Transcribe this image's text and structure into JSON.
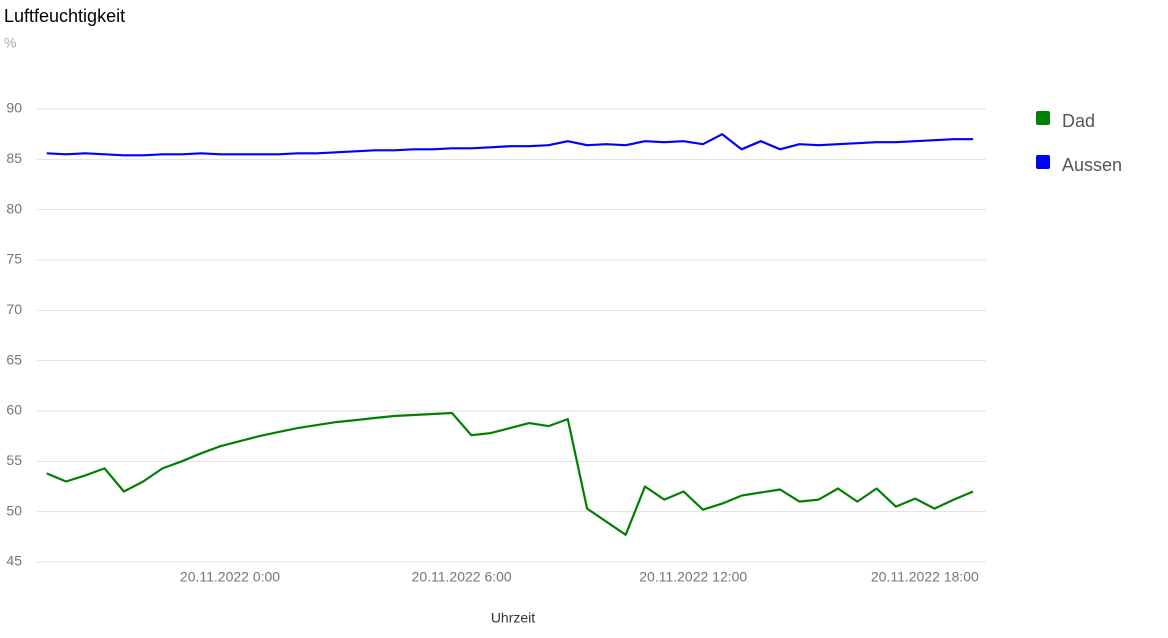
{
  "chart_data": {
    "type": "line",
    "title": "Luftfeuchtigkeit",
    "subtitle": "%",
    "x_label": "Uhrzeit",
    "x": [
      "2022-11-19 19:15",
      "2022-11-19 19:45",
      "2022-11-19 20:15",
      "2022-11-19 20:45",
      "2022-11-19 21:15",
      "2022-11-19 21:45",
      "2022-11-19 22:15",
      "2022-11-19 22:45",
      "2022-11-19 23:15",
      "2022-11-19 23:45",
      "2022-11-20 00:15",
      "2022-11-20 00:45",
      "2022-11-20 01:15",
      "2022-11-20 01:45",
      "2022-11-20 02:15",
      "2022-11-20 02:45",
      "2022-11-20 03:15",
      "2022-11-20 03:45",
      "2022-11-20 04:15",
      "2022-11-20 04:45",
      "2022-11-20 05:15",
      "2022-11-20 05:45",
      "2022-11-20 06:15",
      "2022-11-20 06:45",
      "2022-11-20 07:15",
      "2022-11-20 07:45",
      "2022-11-20 08:15",
      "2022-11-20 08:45",
      "2022-11-20 09:15",
      "2022-11-20 09:45",
      "2022-11-20 10:15",
      "2022-11-20 10:45",
      "2022-11-20 11:15",
      "2022-11-20 11:45",
      "2022-11-20 12:15",
      "2022-11-20 12:45",
      "2022-11-20 13:15",
      "2022-11-20 13:45",
      "2022-11-20 14:15",
      "2022-11-20 14:45",
      "2022-11-20 15:15",
      "2022-11-20 15:45",
      "2022-11-20 16:15",
      "2022-11-20 16:45",
      "2022-11-20 17:15",
      "2022-11-20 17:45",
      "2022-11-20 18:15",
      "2022-11-20 18:45",
      "2022-11-20 19:15"
    ],
    "series": [
      {
        "name": "Dad",
        "color": "#008000",
        "values": [
          53.8,
          53.0,
          53.6,
          54.3,
          52.0,
          53.0,
          54.3,
          55.0,
          55.8,
          56.5,
          57.0,
          57.5,
          57.9,
          58.3,
          58.6,
          58.9,
          59.1,
          59.3,
          59.5,
          59.6,
          59.7,
          59.8,
          57.6,
          57.8,
          58.3,
          58.8,
          58.5,
          59.2,
          50.3,
          49.0,
          47.7,
          52.5,
          51.2,
          52.0,
          50.2,
          50.8,
          51.6,
          51.9,
          52.2,
          51.0,
          51.2,
          52.3,
          51.0,
          52.3,
          50.5,
          51.3,
          50.3,
          51.2,
          52.0
        ]
      },
      {
        "name": "Aussen",
        "color": "#0000ff",
        "values": [
          85.6,
          85.5,
          85.6,
          85.5,
          85.4,
          85.4,
          85.5,
          85.5,
          85.6,
          85.5,
          85.5,
          85.5,
          85.5,
          85.6,
          85.6,
          85.7,
          85.8,
          85.9,
          85.9,
          86.0,
          86.0,
          86.1,
          86.1,
          86.2,
          86.3,
          86.3,
          86.4,
          86.8,
          86.4,
          86.5,
          86.4,
          86.8,
          86.7,
          86.8,
          86.5,
          87.5,
          86.0,
          86.8,
          86.0,
          86.5,
          86.4,
          86.5,
          86.6,
          86.7,
          86.7,
          86.8,
          86.9,
          87.0,
          87.0
        ]
      }
    ],
    "xlim": [
      "2022-11-19 19:00",
      "2022-11-20 19:35"
    ],
    "xticks": [
      {
        "value": "2022-11-20 00:00",
        "label": "20.11.2022 0:00"
      },
      {
        "value": "2022-11-20 06:00",
        "label": "20.11.2022 6:00"
      },
      {
        "value": "2022-11-20 12:00",
        "label": "20.11.2022 12:00"
      },
      {
        "value": "2022-11-20 18:00",
        "label": "20.11.2022 18:00"
      }
    ],
    "ylim": [
      45,
      90
    ],
    "yticks": [
      45,
      50,
      55,
      60,
      65,
      70,
      75,
      80,
      85,
      90
    ],
    "grid": true,
    "legend": "right"
  }
}
